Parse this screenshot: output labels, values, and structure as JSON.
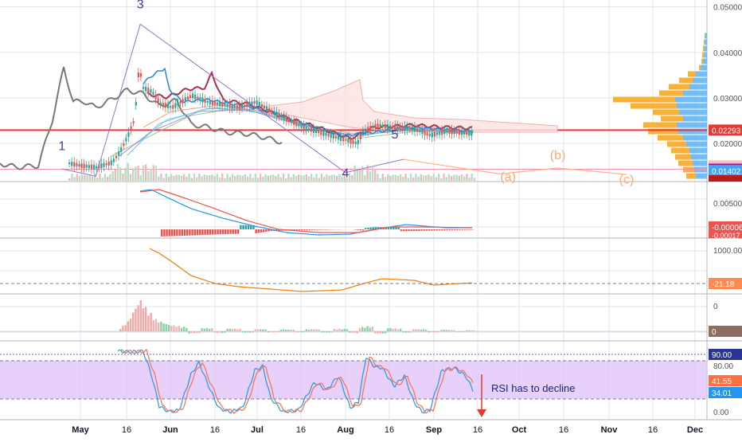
{
  "chart_data": {
    "type": "line",
    "panes": {
      "price": {
        "ylim": [
          0.0118,
          0.0515
        ],
        "y_ticks": [
          "0.05000",
          "0.04000",
          "0.03000",
          "0.02000"
        ],
        "y_tick_values": [
          0.05,
          0.04,
          0.03,
          0.02
        ],
        "horizontal_line": {
          "value": 0.02293,
          "color": "#e53935"
        },
        "thin_line": {
          "value": 0.01434,
          "color": "#f48fb1"
        },
        "price_labels": [
          {
            "text": "0.02293",
            "value": 0.02293,
            "color": "#e53935"
          },
          {
            "text": "0.01507",
            "value": 0.01507,
            "color": "#f8bbd0"
          },
          {
            "text": "0.01434",
            "value": 0.01434,
            "color": "#7b1fa2"
          },
          {
            "text": "0.01411",
            "value": 0.01411,
            "color": "#b71c1c"
          },
          {
            "text": "0.01402",
            "value": 0.01402,
            "color": "#42a5f5"
          }
        ],
        "elliott_labels": [
          {
            "text": "1",
            "x": "2019-04-25",
            "y": 0.0185,
            "color": "#3f3f9f"
          },
          {
            "text": "3",
            "x": "2019-05-21",
            "y": 0.0497,
            "color": "#3f3f9f"
          },
          {
            "text": "4",
            "x": "2019-08-01",
            "y": 0.0126,
            "color": "#3f3f9f"
          },
          {
            "text": "5",
            "x": "2019-08-18",
            "y": 0.0211,
            "color": "#3f3f9f"
          },
          {
            "text": "(a)",
            "x": "2019-09-27",
            "y": 0.0118,
            "color": "#ffa870"
          },
          {
            "text": "(b)",
            "x": "2019-10-14",
            "y": 0.0165,
            "color": "#ffa870"
          },
          {
            "text": "(c)",
            "x": "2019-11-07",
            "y": 0.0112,
            "color": "#ffa870"
          }
        ],
        "wave_path": {
          "color": "#9575cd",
          "points": [
            [
              "2019-04-25",
              0.0144
            ],
            [
              "2019-05-06",
              0.0128
            ],
            [
              "2019-05-21",
              0.0462
            ],
            [
              "2019-08-01",
              0.0136
            ],
            [
              "2019-08-21",
              0.0165
            ]
          ]
        },
        "projection_path": {
          "color": "#ffb380",
          "points": [
            [
              "2019-08-21",
              0.0165
            ],
            [
              "2019-09-24",
              0.0133
            ],
            [
              "2019-10-14",
              0.0146
            ],
            [
              "2019-11-07",
              0.0132
            ]
          ]
        }
      },
      "macd": {
        "y_ticks": [
          "0.00500"
        ],
        "last_value_label": "-0.00006",
        "lower_label": "-0.00017"
      },
      "cci": {
        "y_ticks": [
          "1000.00"
        ],
        "last_value_label": "-21.18"
      },
      "momentum": {
        "y_ticks": [
          "0"
        ],
        "last_value_label": "0"
      },
      "stoch_rsi": {
        "y_ticks": [
          "90.00",
          "80.00",
          "41.55",
          "34.01",
          "0.00"
        ],
        "band": [
          20,
          80
        ],
        "upper_line": 90,
        "annotation": "RSI has to decline"
      }
    },
    "x_axis": {
      "ticks": [
        {
          "label": "May",
          "date": "2019-05-01"
        },
        {
          "label": "16",
          "date": "2019-05-16"
        },
        {
          "label": "Jun",
          "date": "2019-06-01"
        },
        {
          "label": "16",
          "date": "2019-06-16"
        },
        {
          "label": "Jul",
          "date": "2019-07-01"
        },
        {
          "label": "16",
          "date": "2019-07-16"
        },
        {
          "label": "Aug",
          "date": "2019-08-01"
        },
        {
          "label": "16",
          "date": "2019-08-16"
        },
        {
          "label": "Sep",
          "date": "2019-09-01"
        },
        {
          "label": "16",
          "date": "2019-09-16"
        },
        {
          "label": "Oct",
          "date": "2019-10-01"
        },
        {
          "label": "16",
          "date": "2019-10-16"
        },
        {
          "label": "Nov",
          "date": "2019-11-01"
        },
        {
          "label": "16",
          "date": "2019-11-16"
        },
        {
          "label": "Dec",
          "date": "2019-12-01"
        }
      ]
    },
    "colors": {
      "up": "#26a69a",
      "down": "#ef5350",
      "grid": "#e0e3eb",
      "stoch_band": "#e1c4f7",
      "stoch_k": "#2196f3",
      "stoch_d": "#ff6f43",
      "cci_line": "#f57c00",
      "profile_down": "#f9a825",
      "profile_up": "#64b5f6"
    }
  }
}
